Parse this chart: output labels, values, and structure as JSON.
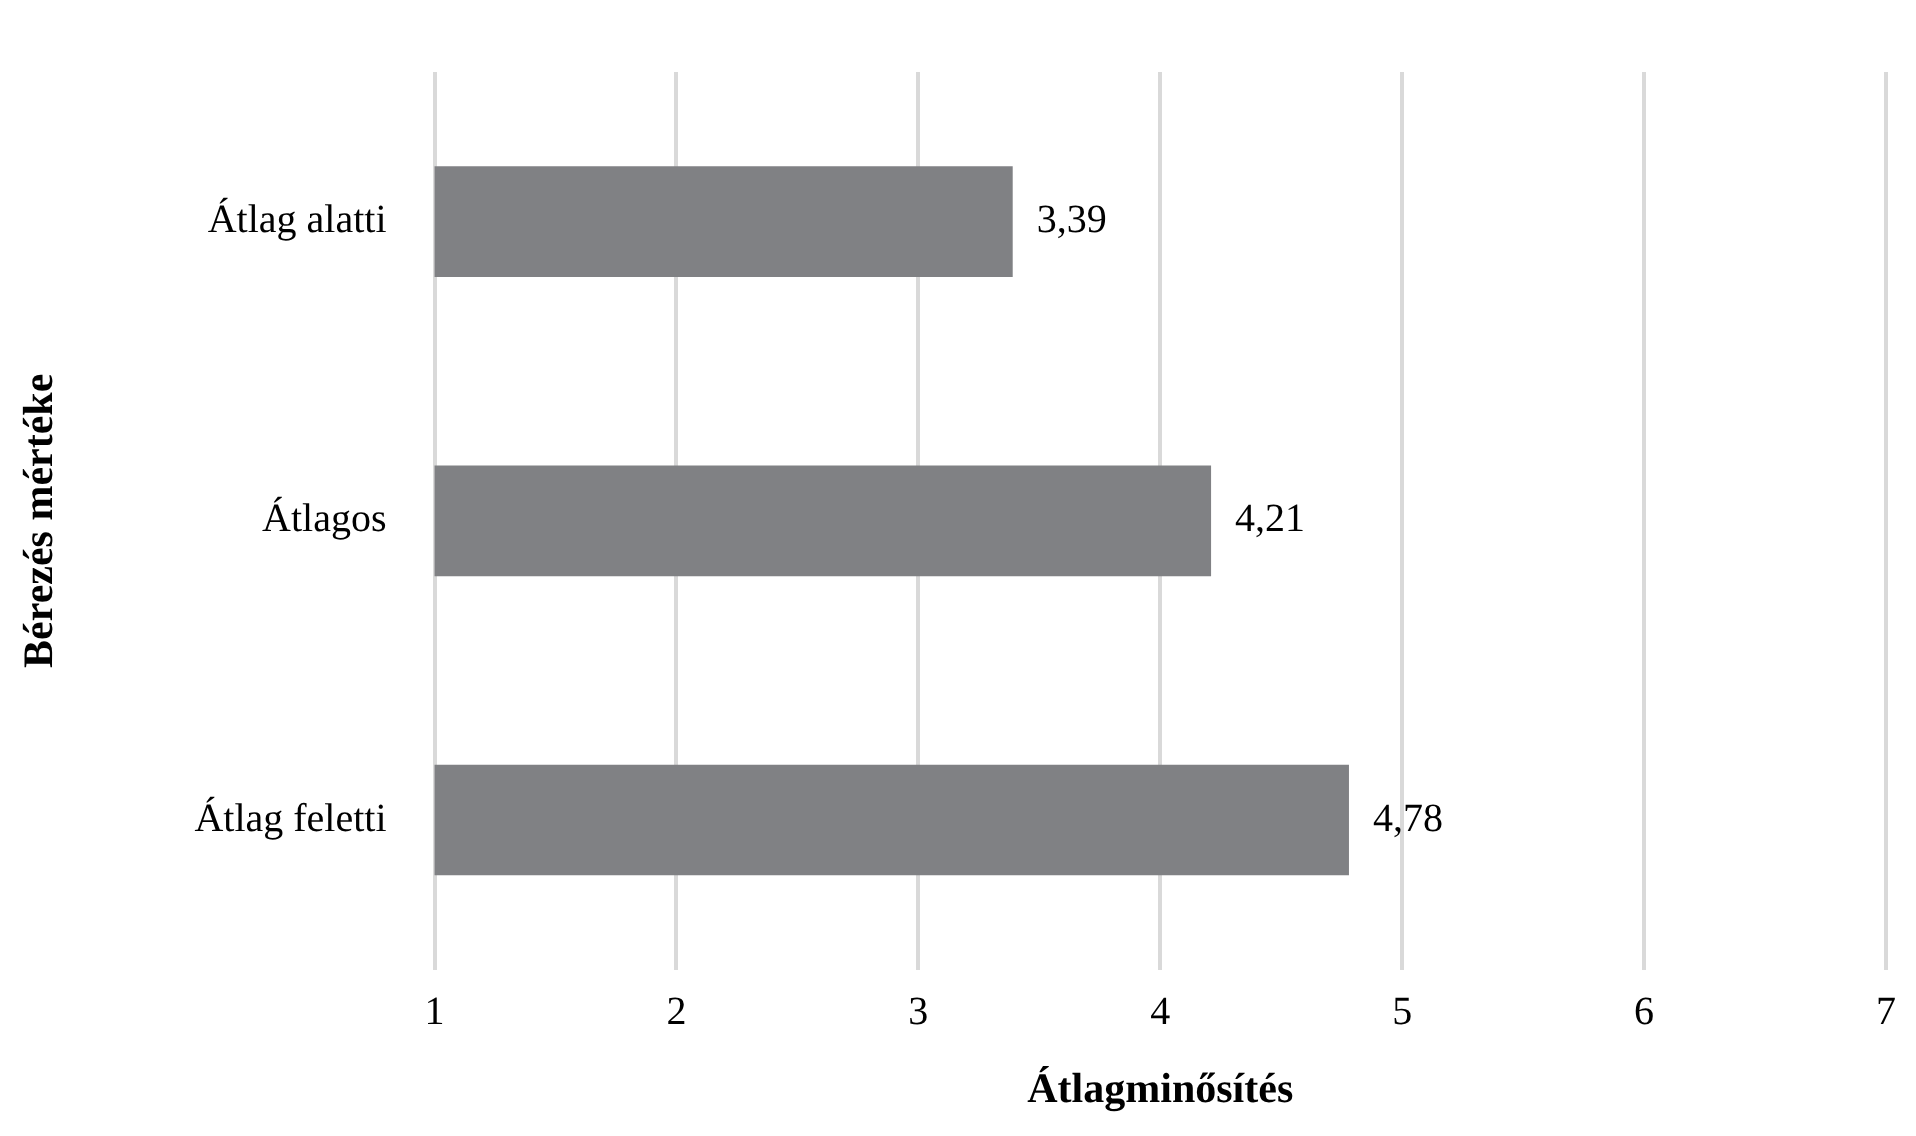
{
  "chart_data": {
    "type": "bar",
    "orientation": "horizontal",
    "xlabel": "Átlagminősítés",
    "ylabel": "Bérezés mértéke",
    "categories": [
      "Átlag alatti",
      "Átlagos",
      "Átlag feletti"
    ],
    "values": [
      3.39,
      4.21,
      4.78
    ],
    "value_labels": [
      "3,39",
      "4,21",
      "4,78"
    ],
    "color": "#808184",
    "xlim": [
      1,
      7
    ],
    "xticks": [
      1,
      2,
      3,
      4,
      5,
      6,
      7
    ],
    "grid": "x",
    "legend": false
  }
}
